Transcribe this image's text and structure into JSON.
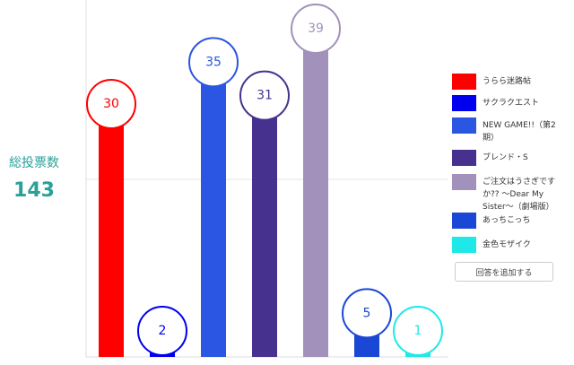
{
  "chart_data": {
    "type": "bar",
    "total_label": "総投票数",
    "total": 143,
    "categories": [
      "うらら迷路帖",
      "サクラクエスト",
      "NEW GAME!!（第2期）",
      "ブレンド・S",
      "ご注文はうさぎですか?? 〜Dear My Sister〜（劇場版）",
      "あっちこっち",
      "金色モザイク"
    ],
    "values": [
      30,
      2,
      35,
      31,
      39,
      5,
      1
    ],
    "colors": [
      "#ff0000",
      "#0000ee",
      "#2b55e3",
      "#47318f",
      "#a291bb",
      "#1a47d6",
      "#1fe8e8"
    ],
    "ylim": [
      0,
      42
    ],
    "button": "回答を追加する"
  }
}
